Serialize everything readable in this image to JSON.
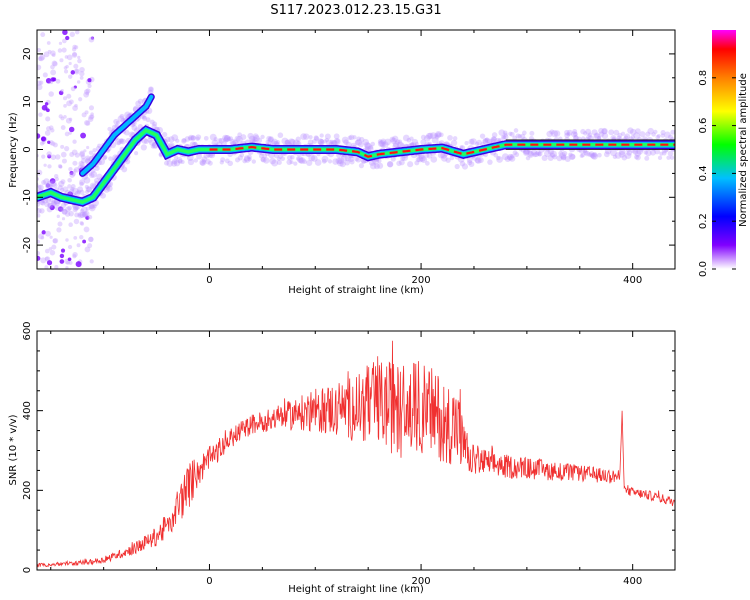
{
  "title": "S117.2023.012.23.15.G31",
  "chart_data": [
    {
      "type": "heatmap",
      "title": "S117.2023.012.23.15.G31",
      "xlabel": "Height of straight line (km)",
      "ylabel": "Frequency (Hz)",
      "xlim": [
        -163,
        440
      ],
      "ylim": [
        -25,
        25
      ],
      "xticks": [
        0,
        200,
        400
      ],
      "yticks": [
        -20,
        -10,
        0,
        10,
        20
      ],
      "colorbar": {
        "label": "Normalized spectral amplitude",
        "range": [
          0,
          1
        ],
        "ticks": [
          "0.0",
          "0.2",
          "0.4",
          "0.6",
          "0.8"
        ],
        "colors": [
          "#ffffff",
          "#8000ff",
          "#0000ff",
          "#00c0ff",
          "#00ff00",
          "#ffff00",
          "#ff8000",
          "#ff0000",
          "#ff00ff"
        ]
      },
      "peak_track": {
        "x": [
          -163,
          -150,
          -140,
          -130,
          -120,
          -110,
          -100,
          -90,
          -80,
          -70,
          -60,
          -50,
          -45,
          -40,
          -30,
          -20,
          -10,
          0,
          20,
          40,
          60,
          80,
          100,
          120,
          140,
          150,
          160,
          180,
          200,
          220,
          240,
          260,
          280,
          300,
          320,
          350,
          380,
          400,
          420,
          440
        ],
        "y": [
          -10,
          -9,
          -10,
          -10.5,
          -11,
          -10,
          -7,
          -4,
          -1,
          2,
          4,
          3,
          1,
          -1,
          0,
          -0.5,
          0,
          0,
          0,
          0.5,
          0,
          0,
          0,
          0,
          -0.5,
          -1.5,
          -1,
          -0.5,
          0,
          0.3,
          -1,
          0,
          1,
          1,
          1,
          1,
          1,
          1,
          1,
          1
        ]
      },
      "secondary_track": {
        "x": [
          -120,
          -110,
          -100,
          -90,
          -80,
          -70,
          -60,
          -55
        ],
        "y": [
          -5,
          -3,
          0,
          3,
          5,
          7,
          9,
          11
        ]
      },
      "scatter_noise_region": [
        -163,
        -110
      ]
    },
    {
      "type": "line",
      "xlabel": "Height of straight line (km)",
      "ylabel": "SNR (10 * v/v)",
      "xlim": [
        -163,
        440
      ],
      "ylim": [
        0,
        600
      ],
      "xticks": [
        0,
        200,
        400
      ],
      "yticks": [
        0,
        200,
        400,
        600
      ],
      "color": "#f03030",
      "series": [
        {
          "x": [
            -163,
            -140,
            -120,
            -100,
            -90,
            -80,
            -70,
            -60,
            -50,
            -40,
            -30,
            -20,
            -10,
            0,
            10,
            20,
            30,
            40,
            60,
            80,
            100,
            120,
            140,
            160,
            180,
            200,
            220,
            235,
            240,
            245,
            260,
            280,
            300,
            320,
            340,
            360,
            380,
            388,
            390,
            392,
            400,
            420,
            440
          ],
          "y": [
            12,
            15,
            18,
            25,
            35,
            45,
            55,
            70,
            85,
            110,
            160,
            210,
            250,
            280,
            300,
            330,
            350,
            365,
            380,
            390,
            400,
            405,
            410,
            420,
            400,
            410,
            380,
            360,
            310,
            280,
            270,
            260,
            255,
            250,
            245,
            240,
            235,
            235,
            400,
            200,
            195,
            185,
            170
          ],
          "noise": [
            5,
            5,
            6,
            8,
            10,
            12,
            15,
            20,
            25,
            35,
            50,
            60,
            40,
            30,
            25,
            25,
            25,
            25,
            30,
            40,
            55,
            70,
            90,
            110,
            120,
            120,
            110,
            100,
            60,
            40,
            35,
            30,
            28,
            25,
            22,
            20,
            18,
            15,
            0,
            12,
            12,
            12,
            12
          ]
        }
      ]
    }
  ]
}
